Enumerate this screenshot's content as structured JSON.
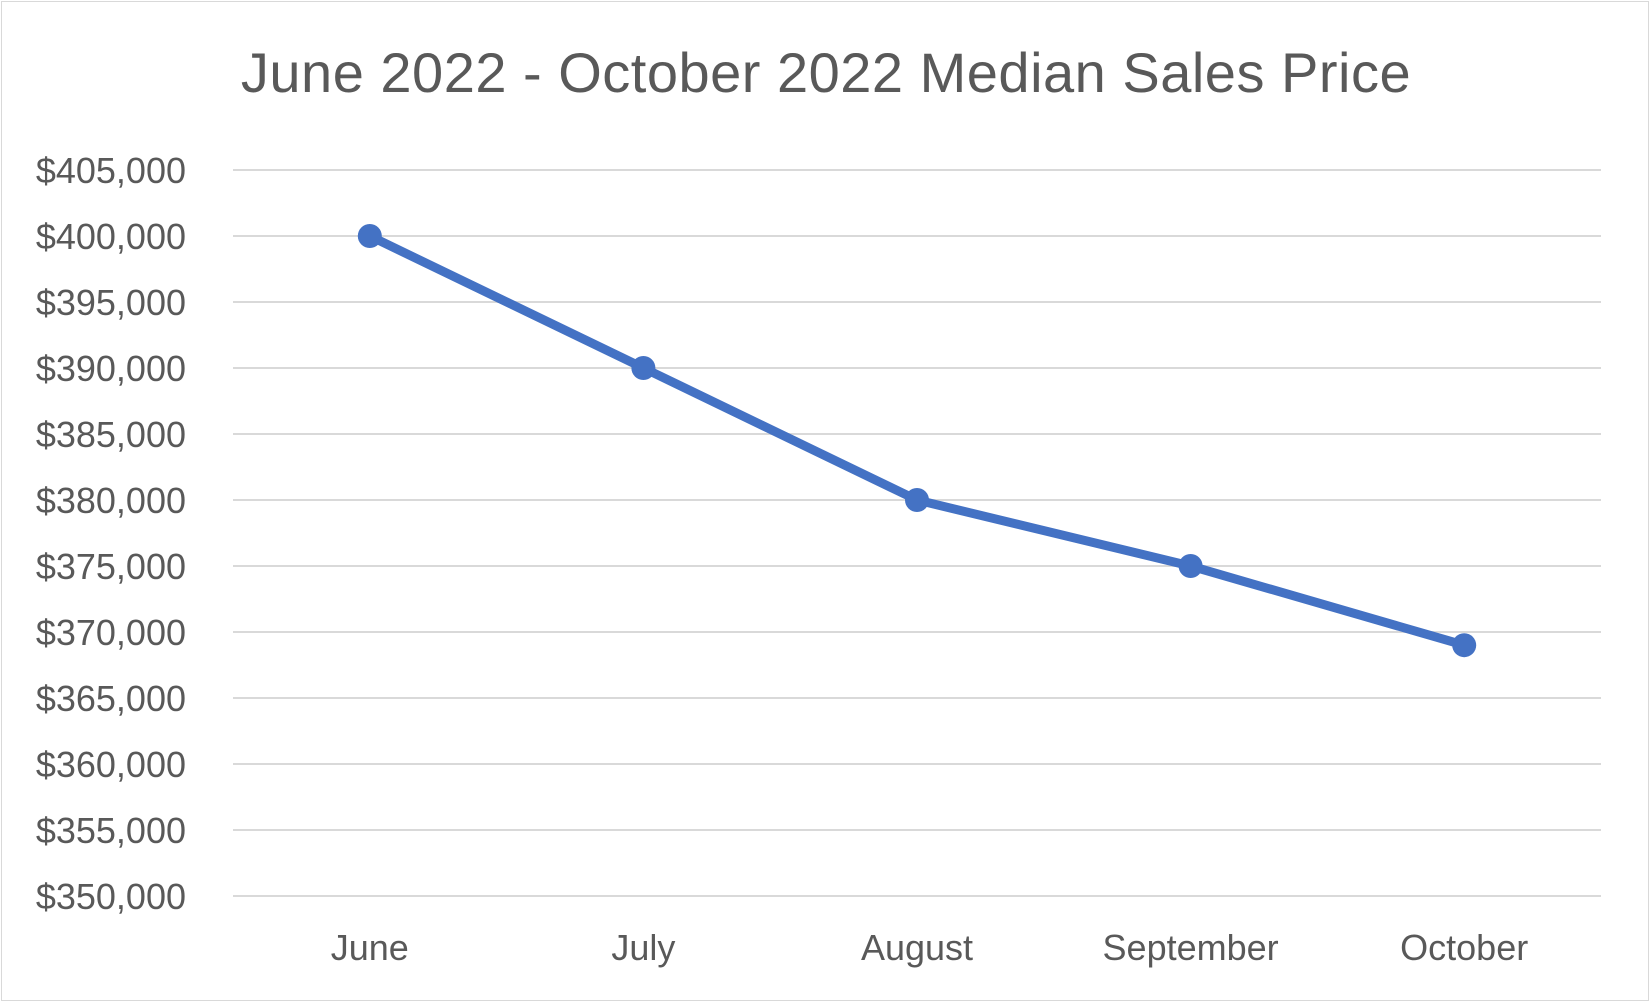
{
  "chart_data": {
    "type": "line",
    "title": "June 2022 - October 2022 Median Sales Price",
    "xlabel": "",
    "ylabel": "",
    "categories": [
      "June",
      "July",
      "August",
      "September",
      "October"
    ],
    "series": [
      {
        "values": [
          400000,
          390000,
          380000,
          375000,
          369000
        ]
      }
    ],
    "ylim": [
      350000,
      405000
    ],
    "y_ticks": [
      350000,
      355000,
      360000,
      365000,
      370000,
      375000,
      380000,
      385000,
      390000,
      395000,
      400000,
      405000
    ],
    "y_tick_labels": [
      "$350,000",
      "$355,000",
      "$360,000",
      "$365,000",
      "$370,000",
      "$375,000",
      "$380,000",
      "$385,000",
      "$390,000",
      "$395,000",
      "$400,000",
      "$405,000"
    ],
    "grid": true,
    "legend": "none",
    "colors": {
      "series": "#4472c4",
      "grid": "#d9d9d9",
      "text": "#595959"
    }
  }
}
